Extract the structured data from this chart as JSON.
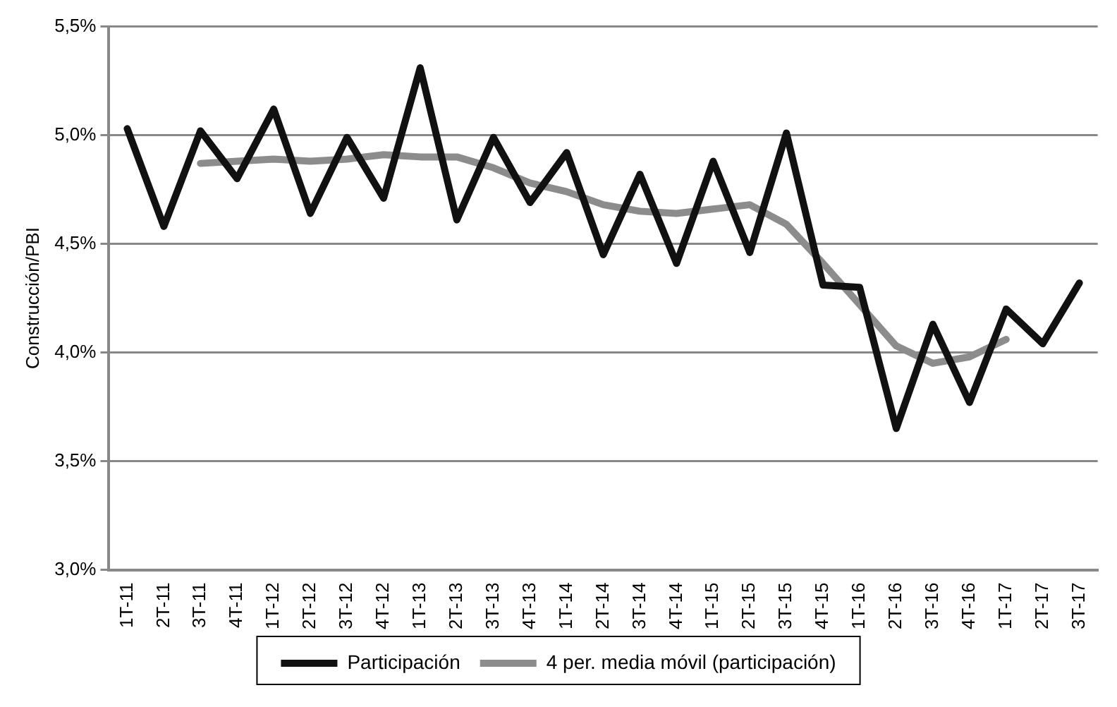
{
  "chart_data": {
    "type": "line",
    "ylabel": "Construcción/PBI",
    "categories": [
      "1T-11",
      "2T-11",
      "3T-11",
      "4T-11",
      "1T-12",
      "2T-12",
      "3T-12",
      "4T-12",
      "1T-13",
      "2T-13",
      "3T-13",
      "4T-13",
      "1T-14",
      "2T-14",
      "3T-14",
      "4T-14",
      "1T-15",
      "2T-15",
      "3T-15",
      "4T-15",
      "1T-16",
      "2T-16",
      "3T-16",
      "4T-16",
      "1T-17",
      "2T-17",
      "3T-17"
    ],
    "series": [
      {
        "name": "Participación",
        "color": "#111111",
        "values": [
          5.03,
          4.58,
          5.02,
          4.8,
          5.12,
          4.64,
          4.99,
          4.71,
          5.31,
          4.61,
          4.99,
          4.69,
          4.92,
          4.45,
          4.82,
          4.41,
          4.88,
          4.46,
          5.01,
          4.31,
          4.3,
          3.65,
          4.13,
          3.77,
          4.2,
          4.04,
          4.32
        ]
      },
      {
        "name": "4 per. media móvil (participación)",
        "color": "#8c8c8c",
        "values": [
          null,
          null,
          4.87,
          4.88,
          4.89,
          4.88,
          4.89,
          4.91,
          4.9,
          4.9,
          4.85,
          4.78,
          4.74,
          4.68,
          4.65,
          4.64,
          4.66,
          4.68,
          4.59,
          4.41,
          4.22,
          4.03,
          3.95,
          3.98,
          4.06,
          null,
          null
        ]
      }
    ],
    "ylim": [
      3.0,
      5.5
    ],
    "yticks": [
      {
        "value": 3.0,
        "label": "3,0%"
      },
      {
        "value": 3.5,
        "label": "3,5%"
      },
      {
        "value": 4.0,
        "label": "4,0%"
      },
      {
        "value": 4.5,
        "label": "4,5%"
      },
      {
        "value": 5.0,
        "label": "5,0%"
      },
      {
        "value": 5.5,
        "label": "5,5%"
      }
    ],
    "grid": "y",
    "legend": "bottom",
    "marker": "none",
    "line_style": "solid"
  }
}
